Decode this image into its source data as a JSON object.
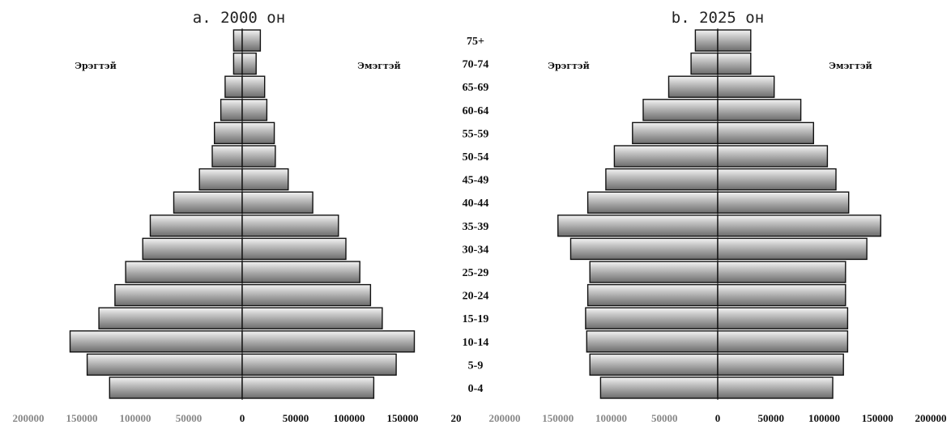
{
  "chart_data": [
    {
      "type": "bar",
      "orientation": "horizontal-pyramid",
      "title": "a. 2000 он",
      "left_label": "Эрэгтэй",
      "right_label": "Эмэгтэй",
      "categories": [
        "0-4",
        "5-9",
        "10-14",
        "15-19",
        "20-24",
        "25-29",
        "30-34",
        "35-39",
        "40-44",
        "45-49",
        "50-54",
        "55-59",
        "60-64",
        "65-69",
        "70-74",
        "75+"
      ],
      "series": [
        {
          "name": "Эрэгтэй",
          "side": "left",
          "values": [
            124000,
            145000,
            161000,
            134000,
            119000,
            109000,
            93000,
            86000,
            64000,
            40000,
            28000,
            26000,
            20000,
            16000,
            8000,
            8000
          ]
        },
        {
          "name": "Эмэгтэй",
          "side": "right",
          "values": [
            123000,
            144000,
            161000,
            131000,
            120000,
            110000,
            97000,
            90000,
            66000,
            43000,
            31000,
            30000,
            23000,
            21000,
            13000,
            17000
          ]
        }
      ],
      "xlim": [
        -200000,
        200000
      ],
      "x_tick_labels": [
        "200000",
        "150000",
        "100000",
        "50000",
        "0",
        "50000",
        "100000",
        "150000",
        "20"
      ]
    },
    {
      "type": "bar",
      "orientation": "horizontal-pyramid",
      "title": "b. 2025 он",
      "left_label": "Эрэгтэй",
      "right_label": "Эмэгтэй",
      "categories": [
        "0-4",
        "5-9",
        "10-14",
        "15-19",
        "20-24",
        "25-29",
        "30-34",
        "35-39",
        "40-44",
        "45-49",
        "50-54",
        "55-59",
        "60-64",
        "65-69",
        "70-74",
        "75+"
      ],
      "series": [
        {
          "name": "Эрэгтэй",
          "side": "left",
          "values": [
            110000,
            120000,
            123000,
            124000,
            122000,
            120000,
            138000,
            150000,
            122000,
            105000,
            97000,
            80000,
            70000,
            46000,
            25000,
            21000
          ]
        },
        {
          "name": "Эмэгтэй",
          "side": "right",
          "values": [
            108000,
            118000,
            122000,
            122000,
            120000,
            120000,
            140000,
            153000,
            123000,
            111000,
            103000,
            90000,
            78000,
            53000,
            31000,
            31000
          ]
        }
      ],
      "xlim": [
        -200000,
        200000
      ],
      "x_tick_labels": [
        "200000",
        "150000",
        "100000",
        "50000",
        "0",
        "50000",
        "100000",
        "150000",
        "200000"
      ]
    }
  ]
}
